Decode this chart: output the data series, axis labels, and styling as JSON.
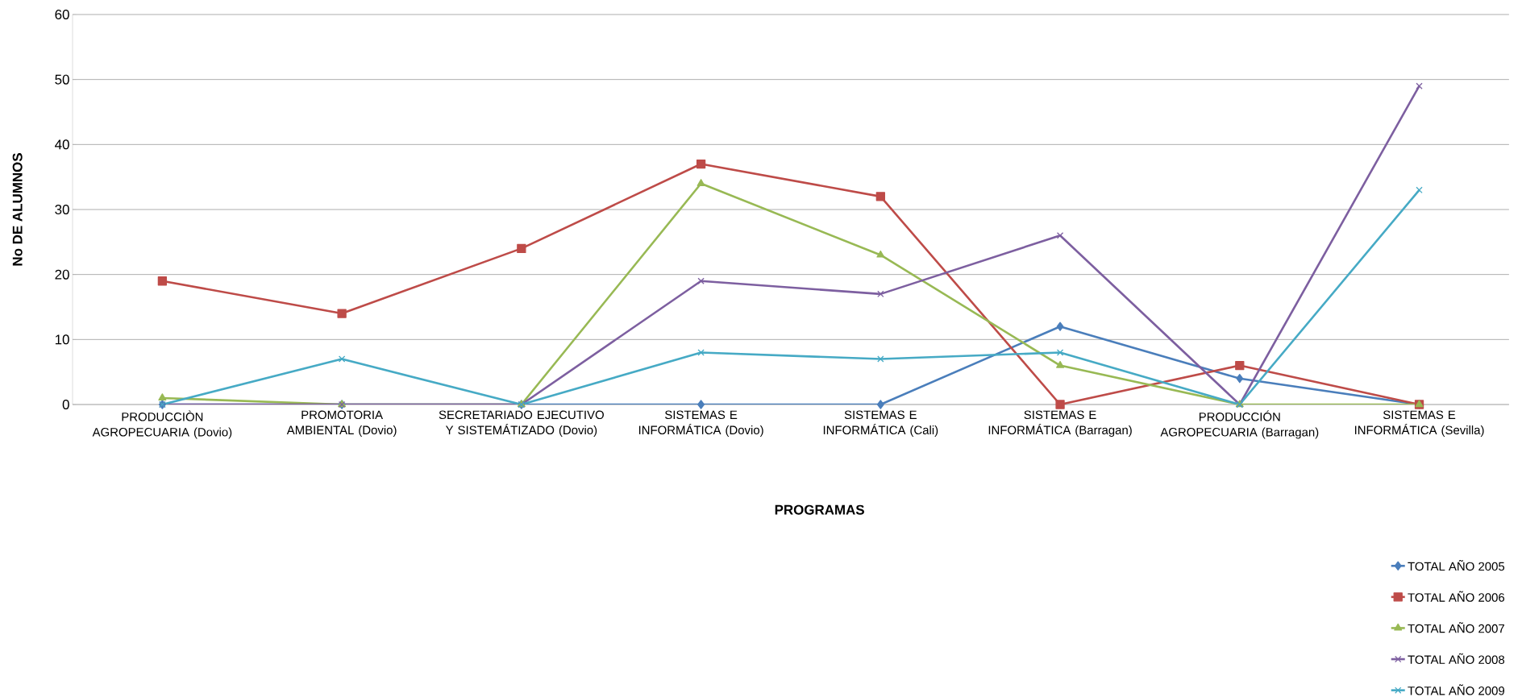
{
  "chart_data": {
    "type": "line",
    "xlabel": "PROGRAMAS",
    "ylabel": "No DE ALUMNOS",
    "categories": [
      "PRODUCCIÒN AGROPECUARIA (Dovio)",
      "PROMOTORIA AMBIENTAL (Dovio)",
      "SECRETARIADO EJECUTIVO Y SISTEMÁTIZADO (Dovio)",
      "SISTEMAS E INFORMÁTICA (Dovio)",
      "SISTEMAS E INFORMÁTICA (Cali)",
      "SISTEMAS E INFORMÁTICA (Barragan)",
      "PRODUCCIÓN AGROPECUARIA (Barragan)",
      "SISTEMAS E INFORMÁTICA (Sevilla)"
    ],
    "series": [
      {
        "name": "TOTAL AÑO 2005",
        "color": "#4a7ebb",
        "marker": "diamond",
        "values": [
          0,
          0,
          0,
          0,
          0,
          12,
          4,
          0
        ]
      },
      {
        "name": "TOTAL AÑO 2006",
        "color": "#be4b48",
        "marker": "square",
        "values": [
          19,
          14,
          24,
          37,
          32,
          0,
          6,
          0
        ]
      },
      {
        "name": "TOTAL AÑO 2007",
        "color": "#98b954",
        "marker": "triangle",
        "values": [
          1,
          0,
          0,
          34,
          23,
          6,
          0,
          0
        ]
      },
      {
        "name": "TOTAL AÑO 2008",
        "color": "#7d5fa0",
        "marker": "cross",
        "values": [
          0,
          0,
          0,
          19,
          17,
          26,
          0,
          49
        ]
      },
      {
        "name": "TOTAL AÑO 2009",
        "color": "#46aac5",
        "marker": "cross",
        "values": [
          0,
          7,
          0,
          8,
          7,
          8,
          0,
          33
        ]
      }
    ],
    "ylim": [
      0,
      60
    ],
    "yticks": [
      0,
      10,
      20,
      30,
      40,
      50,
      60
    ],
    "grid": "y",
    "legend": "bottom right",
    "line_style": "solid"
  }
}
